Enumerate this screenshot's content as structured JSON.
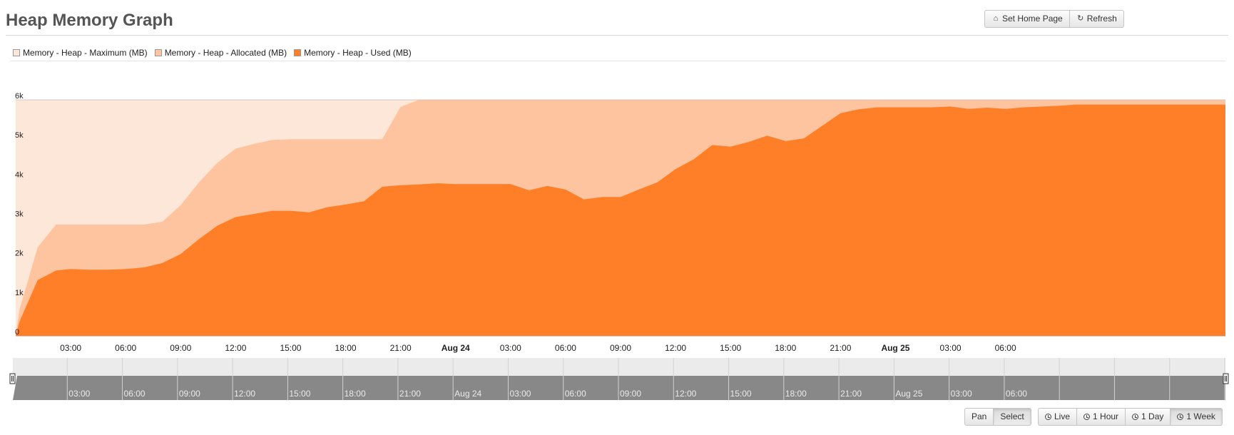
{
  "header": {
    "title": "Heap Memory Graph",
    "set_home_label": "Set Home Page",
    "refresh_label": "Refresh"
  },
  "legend": [
    {
      "label": "Memory - Heap - Maximum (MB)",
      "color": "#fde7d9"
    },
    {
      "label": "Memory - Heap - Allocated (MB)",
      "color": "#fdc49f"
    },
    {
      "label": "Memory - Heap - Used (MB)",
      "color": "#fe7f28"
    }
  ],
  "controls": {
    "pan_label": "Pan",
    "select_label": "Select",
    "live_label": "Live",
    "hour_label": "1 Hour",
    "day_label": "1 Day",
    "week_label": "1 Week",
    "active_mode": "Select",
    "active_range": "1 Week"
  },
  "chart_data": {
    "type": "area",
    "x_unit": "hours",
    "x_range": [
      0,
      66
    ],
    "ylim": [
      0,
      6000
    ],
    "y_ticks": [
      {
        "value": 0,
        "label": "0"
      },
      {
        "value": 1000,
        "label": "1k"
      },
      {
        "value": 2000,
        "label": "2k"
      },
      {
        "value": 3000,
        "label": "3k"
      },
      {
        "value": 4000,
        "label": "4k"
      },
      {
        "value": 5000,
        "label": "5k"
      },
      {
        "value": 6000,
        "label": "6k"
      }
    ],
    "x_ticks": [
      {
        "x": 3,
        "label": "03:00",
        "bold": false
      },
      {
        "x": 6,
        "label": "06:00",
        "bold": false
      },
      {
        "x": 9,
        "label": "09:00",
        "bold": false
      },
      {
        "x": 12,
        "label": "12:00",
        "bold": false
      },
      {
        "x": 15,
        "label": "15:00",
        "bold": false
      },
      {
        "x": 18,
        "label": "18:00",
        "bold": false
      },
      {
        "x": 21,
        "label": "21:00",
        "bold": false
      },
      {
        "x": 24,
        "label": "Aug 24",
        "bold": true
      },
      {
        "x": 27,
        "label": "03:00",
        "bold": false
      },
      {
        "x": 30,
        "label": "06:00",
        "bold": false
      },
      {
        "x": 33,
        "label": "09:00",
        "bold": false
      },
      {
        "x": 36,
        "label": "12:00",
        "bold": false
      },
      {
        "x": 39,
        "label": "15:00",
        "bold": false
      },
      {
        "x": 42,
        "label": "18:00",
        "bold": false
      },
      {
        "x": 45,
        "label": "21:00",
        "bold": false
      },
      {
        "x": 48,
        "label": "Aug 25",
        "bold": true
      },
      {
        "x": 51,
        "label": "03:00",
        "bold": false
      },
      {
        "x": 54,
        "label": "06:00",
        "bold": false
      }
    ],
    "series": [
      {
        "name": "Memory - Heap - Maximum (MB)",
        "color": "#fde7d9",
        "points": [
          [
            0,
            6000
          ],
          [
            66,
            6000
          ]
        ]
      },
      {
        "name": "Memory - Heap - Allocated (MB)",
        "color": "#fdc49f",
        "points": [
          [
            0,
            0
          ],
          [
            0.2,
            650
          ],
          [
            1.2,
            2250
          ],
          [
            2.2,
            2830
          ],
          [
            3,
            2830
          ],
          [
            5,
            2830
          ],
          [
            7,
            2830
          ],
          [
            8,
            2900
          ],
          [
            9,
            3320
          ],
          [
            10,
            3900
          ],
          [
            11,
            4400
          ],
          [
            12,
            4760
          ],
          [
            13,
            4880
          ],
          [
            14,
            4980
          ],
          [
            15,
            5000
          ],
          [
            17,
            5000
          ],
          [
            19,
            5000
          ],
          [
            20,
            5000
          ],
          [
            21,
            5820
          ],
          [
            22,
            6000
          ],
          [
            66,
            6000
          ]
        ]
      },
      {
        "name": "Memory - Heap - Used (MB)",
        "color": "#fe7f28",
        "points": [
          [
            0,
            0
          ],
          [
            0.2,
            350
          ],
          [
            1.2,
            1420
          ],
          [
            2.2,
            1660
          ],
          [
            3,
            1700
          ],
          [
            4,
            1680
          ],
          [
            5,
            1680
          ],
          [
            6,
            1700
          ],
          [
            7,
            1740
          ],
          [
            8,
            1850
          ],
          [
            9,
            2080
          ],
          [
            10,
            2460
          ],
          [
            11,
            2800
          ],
          [
            12,
            3020
          ],
          [
            13,
            3100
          ],
          [
            14,
            3180
          ],
          [
            15,
            3180
          ],
          [
            16,
            3140
          ],
          [
            17,
            3270
          ],
          [
            18,
            3340
          ],
          [
            19,
            3420
          ],
          [
            20,
            3790
          ],
          [
            21,
            3830
          ],
          [
            22,
            3850
          ],
          [
            23,
            3880
          ],
          [
            24,
            3860
          ],
          [
            25,
            3860
          ],
          [
            27,
            3860
          ],
          [
            28,
            3700
          ],
          [
            29,
            3810
          ],
          [
            30,
            3720
          ],
          [
            31,
            3470
          ],
          [
            32,
            3530
          ],
          [
            33,
            3530
          ],
          [
            34,
            3720
          ],
          [
            35,
            3900
          ],
          [
            36,
            4240
          ],
          [
            37,
            4490
          ],
          [
            38,
            4850
          ],
          [
            39,
            4810
          ],
          [
            40,
            4930
          ],
          [
            41,
            5090
          ],
          [
            42,
            4950
          ],
          [
            43,
            5020
          ],
          [
            44,
            5340
          ],
          [
            45,
            5660
          ],
          [
            46,
            5760
          ],
          [
            47,
            5810
          ],
          [
            48,
            5810
          ],
          [
            49,
            5810
          ],
          [
            50,
            5810
          ],
          [
            51,
            5830
          ],
          [
            52,
            5770
          ],
          [
            53,
            5800
          ],
          [
            54,
            5770
          ],
          [
            55,
            5810
          ],
          [
            56,
            5830
          ],
          [
            57,
            5850
          ],
          [
            57.8,
            5880
          ],
          [
            66,
            5880
          ]
        ]
      }
    ]
  }
}
